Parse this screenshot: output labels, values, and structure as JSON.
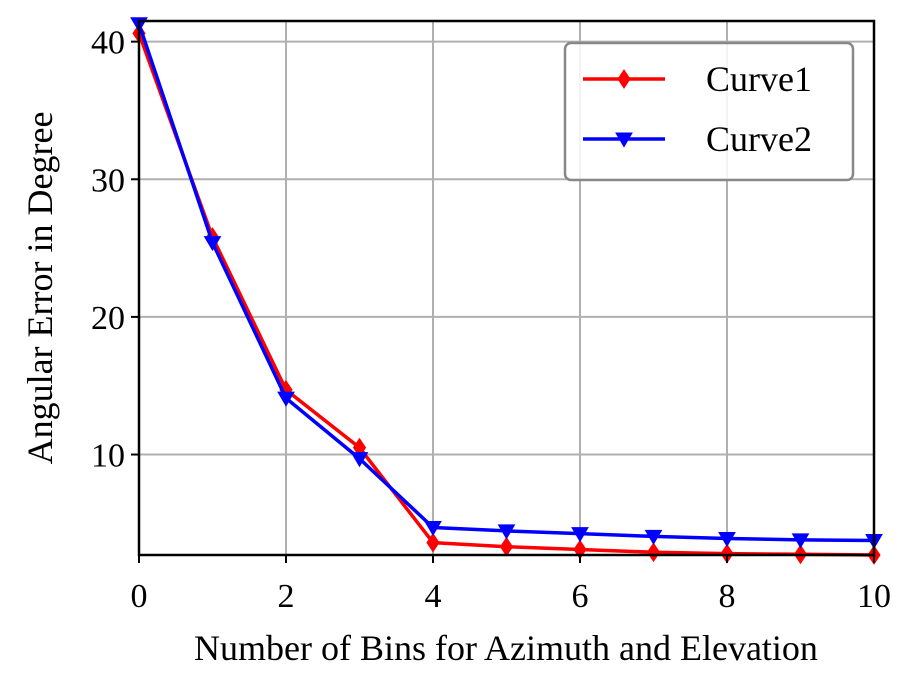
{
  "chart_data": {
    "type": "line",
    "title": "",
    "xlabel": "Number of Bins for Azimuth and Elevation",
    "ylabel": "Angular Error in Degree",
    "xlim": [
      0,
      10
    ],
    "ylim": [
      2.7,
      41.5
    ],
    "xticks": [
      0,
      2,
      4,
      6,
      8,
      10
    ],
    "yticks": [
      10,
      20,
      30,
      40
    ],
    "grid": true,
    "legend_position": "top-right",
    "x": [
      0,
      1,
      2,
      3,
      4,
      5,
      6,
      7,
      8,
      9,
      10
    ],
    "series": [
      {
        "name": "Curve1",
        "color": "#ff0000",
        "marker": "thin-diamond",
        "values": [
          40.6,
          25.8,
          14.7,
          10.5,
          3.6,
          3.3,
          3.1,
          2.9,
          2.8,
          2.75,
          2.7
        ]
      },
      {
        "name": "Curve2",
        "color": "#0000ff",
        "marker": "triangle-down",
        "values": [
          41.3,
          25.4,
          14.1,
          9.7,
          4.7,
          4.45,
          4.25,
          4.05,
          3.9,
          3.8,
          3.75
        ]
      }
    ]
  }
}
